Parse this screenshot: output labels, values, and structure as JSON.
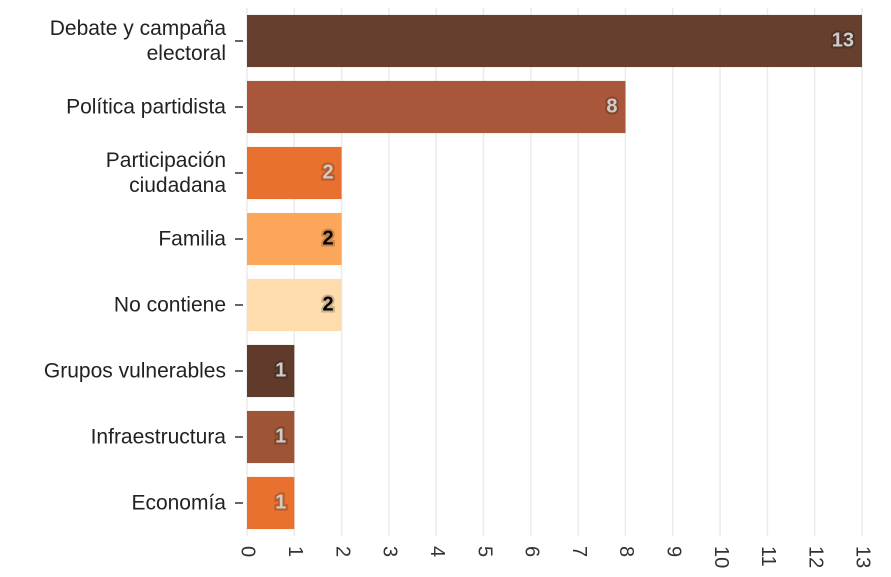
{
  "chart_data": {
    "type": "bar",
    "orientation": "horizontal",
    "categories": [
      "Debate y campaña\nelectoral",
      "Política partidista",
      "Participación\nciudadana",
      "Familia",
      "No contiene",
      "Grupos vulnerables",
      "Infraestructura",
      "Economía"
    ],
    "values": [
      13,
      8,
      2,
      2,
      2,
      1,
      1,
      1
    ],
    "colors": [
      "#673f2e",
      "#a8573a",
      "#e8712f",
      "#fba65a",
      "#fedcad",
      "#603b2c",
      "#9e5535",
      "#e8712f"
    ],
    "label_colors": [
      "#ffffff",
      "#ffffff",
      "#ffffff",
      "#000000",
      "#000000",
      "#ffffff",
      "#ffffff",
      "#ffffff"
    ],
    "xlim": [
      0,
      13
    ],
    "xticks": [
      0,
      1,
      2,
      3,
      4,
      5,
      6,
      7,
      8,
      9,
      10,
      11,
      12,
      13
    ],
    "grid": true
  }
}
